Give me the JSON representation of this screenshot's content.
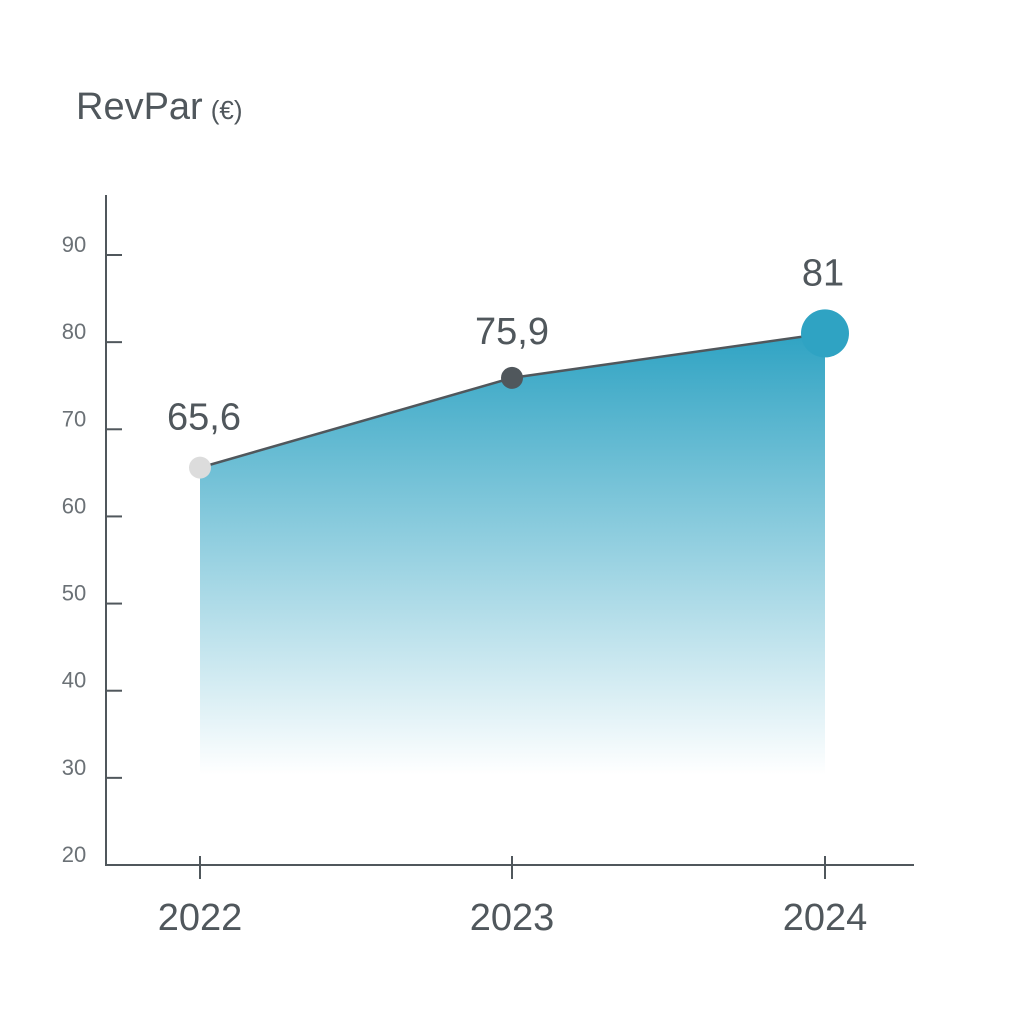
{
  "chart_data": {
    "type": "area",
    "title": "RevPar",
    "unit": "(€)",
    "categories": [
      "2022",
      "2023",
      "2024"
    ],
    "values": [
      65.6,
      75.9,
      81
    ],
    "value_labels": [
      "65,6",
      "75,9",
      "81"
    ],
    "ylim": [
      20,
      90
    ],
    "yticks": [
      20,
      30,
      40,
      50,
      60,
      70,
      80,
      90
    ],
    "grid": false,
    "legend": "none",
    "colors": {
      "line": "#50575c",
      "fill_top": "#2fa3c3",
      "point_start": "#dcdcdc",
      "point_mid": "#50575c",
      "point_end": "#2fa3c3",
      "axis": "#50575c",
      "text": "#50575c"
    }
  }
}
